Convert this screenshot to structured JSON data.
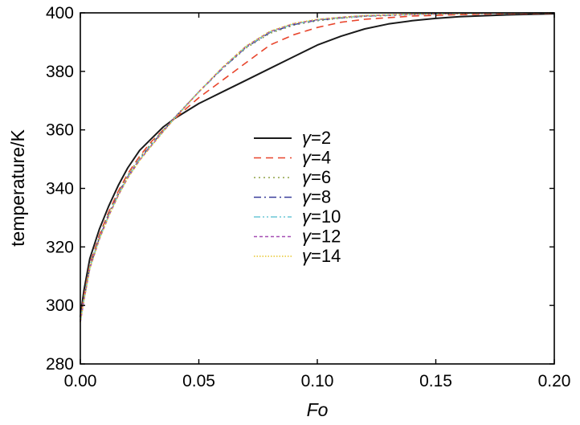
{
  "chart_data": {
    "type": "line",
    "title": "",
    "xlabel": "Fo",
    "ylabel": "temperature/K",
    "xlim": [
      0.0,
      0.2
    ],
    "ylim": [
      280,
      400
    ],
    "xticks": [
      0.0,
      0.05,
      0.1,
      0.15,
      0.2
    ],
    "xtick_labels": [
      "0.00",
      "0.05",
      "0.10",
      "0.15",
      "0.20"
    ],
    "yticks": [
      280,
      300,
      320,
      340,
      360,
      380,
      400
    ],
    "ytick_labels": [
      "280",
      "300",
      "320",
      "340",
      "360",
      "380",
      "400"
    ],
    "grid": false,
    "legend_position": "center",
    "series": [
      {
        "name": "γ=2",
        "label_symbol": "γ",
        "label_value": "=2",
        "color": "#1a1a1a",
        "dash": "solid",
        "x": [
          0.0,
          0.0015,
          0.004,
          0.008,
          0.012,
          0.016,
          0.02,
          0.025,
          0.03,
          0.035,
          0.04,
          0.05,
          0.06,
          0.07,
          0.08,
          0.09,
          0.1,
          0.11,
          0.12,
          0.13,
          0.14,
          0.15,
          0.16,
          0.18,
          0.2
        ],
        "y": [
          296,
          305,
          316,
          326,
          334,
          341,
          347,
          353,
          357,
          361,
          364,
          369,
          373,
          377,
          381,
          385,
          389,
          392,
          394.5,
          396.2,
          397.3,
          398.1,
          398.7,
          399.3,
          399.7
        ]
      },
      {
        "name": "γ=4",
        "label_symbol": "γ",
        "label_value": "=4",
        "color": "#e8452c",
        "dash": "dashed",
        "x": [
          0.0,
          0.0015,
          0.004,
          0.008,
          0.012,
          0.016,
          0.02,
          0.025,
          0.03,
          0.035,
          0.04,
          0.05,
          0.06,
          0.07,
          0.08,
          0.09,
          0.1,
          0.11,
          0.12,
          0.14,
          0.16,
          0.18,
          0.2
        ],
        "y": [
          295,
          303,
          314,
          324,
          332,
          339,
          345,
          351,
          356,
          360,
          364,
          371,
          377,
          383,
          389,
          392.5,
          395,
          396.8,
          397.8,
          398.9,
          399.4,
          399.7,
          399.9
        ]
      },
      {
        "name": "γ=6",
        "label_symbol": "γ",
        "label_value": "=6",
        "color": "#8fa347",
        "dash": "dotted",
        "x": [
          0.0,
          0.0015,
          0.004,
          0.008,
          0.012,
          0.016,
          0.02,
          0.025,
          0.03,
          0.035,
          0.04,
          0.05,
          0.06,
          0.07,
          0.08,
          0.09,
          0.1,
          0.11,
          0.12,
          0.14,
          0.16,
          0.18,
          0.2
        ],
        "y": [
          295,
          302.5,
          313.5,
          323.5,
          331.5,
          338.5,
          344.5,
          350.5,
          355.5,
          360,
          364.5,
          373,
          381,
          388,
          393,
          395.8,
          397.3,
          398.2,
          398.8,
          399.4,
          399.7,
          399.9,
          400
        ]
      },
      {
        "name": "γ=8",
        "label_symbol": "γ",
        "label_value": "=8",
        "color": "#3a3f9a",
        "dash": "dashdot",
        "x": [
          0.0,
          0.0015,
          0.004,
          0.008,
          0.012,
          0.016,
          0.02,
          0.025,
          0.03,
          0.035,
          0.04,
          0.05,
          0.06,
          0.07,
          0.08,
          0.09,
          0.1,
          0.11,
          0.12,
          0.14,
          0.16,
          0.18,
          0.2
        ],
        "y": [
          294.5,
          302,
          313,
          323,
          331,
          338,
          344,
          350,
          355,
          359.7,
          364.3,
          373,
          381,
          388.3,
          393.3,
          396,
          397.5,
          398.3,
          398.9,
          399.5,
          399.8,
          399.9,
          400
        ]
      },
      {
        "name": "γ=10",
        "label_symbol": "γ",
        "label_value": "=10",
        "color": "#6cc7d6",
        "dash": "dashdotdot",
        "x": [
          0.0,
          0.0015,
          0.004,
          0.008,
          0.012,
          0.016,
          0.02,
          0.025,
          0.03,
          0.035,
          0.04,
          0.05,
          0.06,
          0.07,
          0.08,
          0.09,
          0.1,
          0.11,
          0.12,
          0.14,
          0.16,
          0.18,
          0.2
        ],
        "y": [
          294.5,
          301.8,
          312.8,
          322.8,
          330.8,
          337.8,
          343.8,
          349.8,
          354.8,
          359.6,
          364.2,
          373,
          381.2,
          388.5,
          393.5,
          396.2,
          397.6,
          398.4,
          399,
          399.5,
          399.8,
          399.9,
          400
        ]
      },
      {
        "name": "γ=12",
        "label_symbol": "γ",
        "label_value": "=12",
        "color": "#a64fb3",
        "dash": "shortdash",
        "x": [
          0.0,
          0.0015,
          0.004,
          0.008,
          0.012,
          0.016,
          0.02,
          0.025,
          0.03,
          0.035,
          0.04,
          0.05,
          0.06,
          0.07,
          0.08,
          0.09,
          0.1,
          0.11,
          0.12,
          0.14,
          0.16,
          0.18,
          0.2
        ],
        "y": [
          294.3,
          301.6,
          312.6,
          322.6,
          330.6,
          337.6,
          343.6,
          349.6,
          354.6,
          359.5,
          364.2,
          373,
          381.3,
          388.6,
          393.6,
          396.3,
          397.7,
          398.5,
          399,
          399.5,
          399.8,
          399.9,
          400
        ]
      },
      {
        "name": "γ=14",
        "label_symbol": "γ",
        "label_value": "=14",
        "color": "#e8c62e",
        "dash": "finedot",
        "x": [
          0.0,
          0.0015,
          0.004,
          0.008,
          0.012,
          0.016,
          0.02,
          0.025,
          0.03,
          0.035,
          0.04,
          0.05,
          0.06,
          0.07,
          0.08,
          0.09,
          0.1,
          0.11,
          0.12,
          0.14,
          0.16,
          0.18,
          0.2
        ],
        "y": [
          294.2,
          301.5,
          312.5,
          322.5,
          330.5,
          337.5,
          343.5,
          349.5,
          354.5,
          359.4,
          364.1,
          373,
          381.4,
          388.7,
          393.7,
          396.4,
          397.8,
          398.5,
          399.1,
          399.6,
          399.8,
          399.9,
          400
        ]
      }
    ]
  }
}
